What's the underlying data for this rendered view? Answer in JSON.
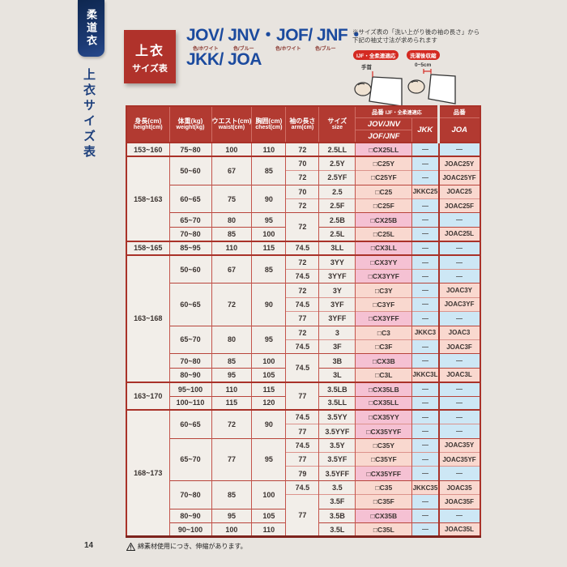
{
  "page": {
    "page_number": "14",
    "footer_note": "綿素材使用につき、伸縮があります。"
  },
  "sidebar": {
    "tab_label": "柔道衣",
    "section_label": "上衣サイズ表"
  },
  "header": {
    "badge_line1": "上衣",
    "badge_line2": "サイズ表",
    "title_line1": "JOV/ JNV・JOF/ JNF・",
    "title_line2": "JKK/ JOA",
    "color_labels": [
      "色/ホワイト",
      "色/ブルー",
      "色/ホワイト",
      "色/ブルー"
    ],
    "note_line1": "※サイズ表の「洗い上がり後の袖の長さ」から",
    "note_line2": "下記の袖丈寸法が求められます",
    "diagrams": {
      "left_badge": "IJF・全柔連適応",
      "left_label": "手首",
      "right_badge": "洗濯後収縮",
      "right_label": "0~5cm"
    }
  },
  "colors": {
    "accent_red": "#b23a31",
    "pink_cx": "#f5c1d3",
    "pink_val": "#f9d8cf",
    "blue_dash": "#cde7f5",
    "title_blue": "#1b4a9e",
    "navy": "#16305f"
  },
  "table": {
    "columns": [
      {
        "l1": "身長(cm)",
        "l2": "height(cm)"
      },
      {
        "l1": "体重(kg)",
        "l2": "weight(kg)"
      },
      {
        "l1": "ウエスト(cm)",
        "l2": "waist(cm)"
      },
      {
        "l1": "胸囲(cm)",
        "l2": "chest(cm)"
      },
      {
        "l1": "袖の長さ",
        "l2": "arm(cm)"
      },
      {
        "l1": "サイズ",
        "l2": "size"
      }
    ],
    "product_header": {
      "group1_main": "品番",
      "group1_sub": "IJF・全柔連適応",
      "group2": "品番",
      "sub1a": "JOV/JNV",
      "sub1b": "JOF/JNF",
      "jkk": "JKK",
      "joa": "JOA"
    },
    "rows": [
      {
        "g": "hg",
        "cells": [
          [
            "h",
            "153~160",
            1
          ],
          [
            "w",
            "75~80",
            1
          ],
          [
            "wa",
            "100",
            1
          ],
          [
            "ch",
            "110",
            1
          ],
          [
            "a",
            "72",
            1
          ],
          [
            "s",
            "2.5LL",
            1
          ],
          [
            "p",
            "□CX25LL",
            1,
            "cx"
          ],
          [
            "k",
            "—",
            1,
            "dash"
          ],
          [
            "j",
            "—",
            1,
            "dash"
          ]
        ]
      },
      {
        "g": "hg",
        "cells": [
          [
            "h",
            "158~163",
            6
          ],
          [
            "w",
            "50~60",
            2
          ],
          [
            "wa",
            "67",
            2
          ],
          [
            "ch",
            "85",
            2
          ],
          [
            "a",
            "70",
            1
          ],
          [
            "s",
            "2.5Y",
            1
          ],
          [
            "p",
            "□C25Y",
            1,
            "val"
          ],
          [
            "k",
            "—",
            1,
            "dash"
          ],
          [
            "j",
            "JOAC25Y",
            1,
            "val"
          ]
        ]
      },
      {
        "g": "",
        "cells": [
          [
            "a",
            "72",
            1
          ],
          [
            "s",
            "2.5YF",
            1
          ],
          [
            "p",
            "□C25YF",
            1,
            "val"
          ],
          [
            "k",
            "—",
            1,
            "dash"
          ],
          [
            "j",
            "JOAC25YF",
            1,
            "val"
          ]
        ]
      },
      {
        "g": "wg",
        "cells": [
          [
            "w",
            "60~65",
            2
          ],
          [
            "wa",
            "75",
            2
          ],
          [
            "ch",
            "90",
            2
          ],
          [
            "a",
            "70",
            1
          ],
          [
            "s",
            "2.5",
            1
          ],
          [
            "p",
            "□C25",
            1,
            "val"
          ],
          [
            "k",
            "JKKC25",
            1,
            "val"
          ],
          [
            "j",
            "JOAC25",
            1,
            "val"
          ]
        ]
      },
      {
        "g": "",
        "cells": [
          [
            "a",
            "72",
            1
          ],
          [
            "s",
            "2.5F",
            1
          ],
          [
            "p",
            "□C25F",
            1,
            "val"
          ],
          [
            "k",
            "—",
            1,
            "dash"
          ],
          [
            "j",
            "JOAC25F",
            1,
            "val"
          ]
        ]
      },
      {
        "g": "wg",
        "cells": [
          [
            "w",
            "65~70",
            1
          ],
          [
            "wa",
            "80",
            1
          ],
          [
            "ch",
            "95",
            1
          ],
          [
            "a",
            "72",
            2
          ],
          [
            "s",
            "2.5B",
            1
          ],
          [
            "p",
            "□CX25B",
            1,
            "cx"
          ],
          [
            "k",
            "—",
            1,
            "dash"
          ],
          [
            "j",
            "—",
            1,
            "dash"
          ]
        ]
      },
      {
        "g": "wg",
        "cells": [
          [
            "w",
            "70~80",
            1
          ],
          [
            "wa",
            "85",
            1
          ],
          [
            "ch",
            "100",
            1
          ],
          [
            "s",
            "2.5L",
            1
          ],
          [
            "p",
            "□C25L",
            1,
            "val"
          ],
          [
            "k",
            "—",
            1,
            "dash"
          ],
          [
            "j",
            "JOAC25L",
            1,
            "val"
          ]
        ]
      },
      {
        "g": "hg",
        "cells": [
          [
            "h",
            "158~165",
            1
          ],
          [
            "w",
            "85~95",
            1
          ],
          [
            "wa",
            "110",
            1
          ],
          [
            "ch",
            "115",
            1
          ],
          [
            "a",
            "74.5",
            1
          ],
          [
            "s",
            "3LL",
            1
          ],
          [
            "p",
            "□CX3LL",
            1,
            "cx"
          ],
          [
            "k",
            "—",
            1,
            "dash"
          ],
          [
            "j",
            "—",
            1,
            "dash"
          ]
        ]
      },
      {
        "g": "hg",
        "cells": [
          [
            "h",
            "163~168",
            9
          ],
          [
            "w",
            "50~60",
            2
          ],
          [
            "wa",
            "67",
            2
          ],
          [
            "ch",
            "85",
            2
          ],
          [
            "a",
            "72",
            1
          ],
          [
            "s",
            "3YY",
            1
          ],
          [
            "p",
            "□CX3YY",
            1,
            "cx"
          ],
          [
            "k",
            "—",
            1,
            "dash"
          ],
          [
            "j",
            "—",
            1,
            "dash"
          ]
        ]
      },
      {
        "g": "",
        "cells": [
          [
            "a",
            "74.5",
            1
          ],
          [
            "s",
            "3YYF",
            1
          ],
          [
            "p",
            "□CX3YYF",
            1,
            "cx"
          ],
          [
            "k",
            "—",
            1,
            "dash"
          ],
          [
            "j",
            "—",
            1,
            "dash"
          ]
        ]
      },
      {
        "g": "wg",
        "cells": [
          [
            "w",
            "60~65",
            3
          ],
          [
            "wa",
            "72",
            3
          ],
          [
            "ch",
            "90",
            3
          ],
          [
            "a",
            "72",
            1
          ],
          [
            "s",
            "3Y",
            1
          ],
          [
            "p",
            "□C3Y",
            1,
            "val"
          ],
          [
            "k",
            "—",
            1,
            "dash"
          ],
          [
            "j",
            "JOAC3Y",
            1,
            "val"
          ]
        ]
      },
      {
        "g": "",
        "cells": [
          [
            "a",
            "74.5",
            1
          ],
          [
            "s",
            "3YF",
            1
          ],
          [
            "p",
            "□C3YF",
            1,
            "val"
          ],
          [
            "k",
            "—",
            1,
            "dash"
          ],
          [
            "j",
            "JOAC3YF",
            1,
            "val"
          ]
        ]
      },
      {
        "g": "",
        "cells": [
          [
            "a",
            "77",
            1
          ],
          [
            "s",
            "3YFF",
            1
          ],
          [
            "p",
            "□CX3YFF",
            1,
            "cx"
          ],
          [
            "k",
            "—",
            1,
            "dash"
          ],
          [
            "j",
            "—",
            1,
            "dash"
          ]
        ]
      },
      {
        "g": "wg",
        "cells": [
          [
            "w",
            "65~70",
            2
          ],
          [
            "wa",
            "80",
            2
          ],
          [
            "ch",
            "95",
            2
          ],
          [
            "a",
            "72",
            1
          ],
          [
            "s",
            "3",
            1
          ],
          [
            "p",
            "□C3",
            1,
            "val"
          ],
          [
            "k",
            "JKKC3",
            1,
            "val"
          ],
          [
            "j",
            "JOAC3",
            1,
            "val"
          ]
        ]
      },
      {
        "g": "",
        "cells": [
          [
            "a",
            "74.5",
            1
          ],
          [
            "s",
            "3F",
            1
          ],
          [
            "p",
            "□C3F",
            1,
            "val"
          ],
          [
            "k",
            "—",
            1,
            "dash"
          ],
          [
            "j",
            "JOAC3F",
            1,
            "val"
          ]
        ]
      },
      {
        "g": "wg",
        "cells": [
          [
            "w",
            "70~80",
            1
          ],
          [
            "wa",
            "85",
            1
          ],
          [
            "ch",
            "100",
            1
          ],
          [
            "a",
            "74.5",
            2
          ],
          [
            "s",
            "3B",
            1
          ],
          [
            "p",
            "□CX3B",
            1,
            "cx"
          ],
          [
            "k",
            "—",
            1,
            "dash"
          ],
          [
            "j",
            "—",
            1,
            "dash"
          ]
        ]
      },
      {
        "g": "wg",
        "cells": [
          [
            "w",
            "80~90",
            1
          ],
          [
            "wa",
            "95",
            1
          ],
          [
            "ch",
            "105",
            1
          ],
          [
            "s",
            "3L",
            1
          ],
          [
            "p",
            "□C3L",
            1,
            "val"
          ],
          [
            "k",
            "JKKC3L",
            1,
            "val"
          ],
          [
            "j",
            "JOAC3L",
            1,
            "val"
          ]
        ]
      },
      {
        "g": "hg",
        "cells": [
          [
            "h",
            "163~170",
            2
          ],
          [
            "w",
            "95~100",
            1
          ],
          [
            "wa",
            "110",
            1
          ],
          [
            "ch",
            "115",
            1
          ],
          [
            "a",
            "77",
            2
          ],
          [
            "s",
            "3.5LB",
            1
          ],
          [
            "p",
            "□CX35LB",
            1,
            "cx"
          ],
          [
            "k",
            "—",
            1,
            "dash"
          ],
          [
            "j",
            "—",
            1,
            "dash"
          ]
        ]
      },
      {
        "g": "wg",
        "cells": [
          [
            "w",
            "100~110",
            1
          ],
          [
            "wa",
            "115",
            1
          ],
          [
            "ch",
            "120",
            1
          ],
          [
            "s",
            "3.5LL",
            1
          ],
          [
            "p",
            "□CX35LL",
            1,
            "cx"
          ],
          [
            "k",
            "—",
            1,
            "dash"
          ],
          [
            "j",
            "—",
            1,
            "dash"
          ]
        ]
      },
      {
        "g": "hg",
        "cells": [
          [
            "h",
            "168~173",
            9
          ],
          [
            "w",
            "60~65",
            2
          ],
          [
            "wa",
            "72",
            2
          ],
          [
            "ch",
            "90",
            2
          ],
          [
            "a",
            "74.5",
            1
          ],
          [
            "s",
            "3.5YY",
            1
          ],
          [
            "p",
            "□CX35YY",
            1,
            "cx"
          ],
          [
            "k",
            "—",
            1,
            "dash"
          ],
          [
            "j",
            "—",
            1,
            "dash"
          ]
        ]
      },
      {
        "g": "",
        "cells": [
          [
            "a",
            "77",
            1
          ],
          [
            "s",
            "3.5YYF",
            1
          ],
          [
            "p",
            "□CX35YYF",
            1,
            "cx"
          ],
          [
            "k",
            "—",
            1,
            "dash"
          ],
          [
            "j",
            "—",
            1,
            "dash"
          ]
        ]
      },
      {
        "g": "wg",
        "cells": [
          [
            "w",
            "65~70",
            3
          ],
          [
            "wa",
            "77",
            3
          ],
          [
            "ch",
            "95",
            3
          ],
          [
            "a",
            "74.5",
            1
          ],
          [
            "s",
            "3.5Y",
            1
          ],
          [
            "p",
            "□C35Y",
            1,
            "val"
          ],
          [
            "k",
            "—",
            1,
            "dash"
          ],
          [
            "j",
            "JOAC35Y",
            1,
            "val"
          ]
        ]
      },
      {
        "g": "",
        "cells": [
          [
            "a",
            "77",
            1
          ],
          [
            "s",
            "3.5YF",
            1
          ],
          [
            "p",
            "□C35YF",
            1,
            "val"
          ],
          [
            "k",
            "—",
            1,
            "dash"
          ],
          [
            "j",
            "JOAC35YF",
            1,
            "val"
          ]
        ]
      },
      {
        "g": "",
        "cells": [
          [
            "a",
            "79",
            1
          ],
          [
            "s",
            "3.5YFF",
            1
          ],
          [
            "p",
            "□CX35YFF",
            1,
            "cx"
          ],
          [
            "k",
            "—",
            1,
            "dash"
          ],
          [
            "j",
            "—",
            1,
            "dash"
          ]
        ]
      },
      {
        "g": "wg",
        "cells": [
          [
            "w",
            "70~80",
            2
          ],
          [
            "wa",
            "85",
            2
          ],
          [
            "ch",
            "100",
            2
          ],
          [
            "a",
            "74.5",
            1
          ],
          [
            "s",
            "3.5",
            1
          ],
          [
            "p",
            "□C35",
            1,
            "val"
          ],
          [
            "k",
            "JKKC35",
            1,
            "val"
          ],
          [
            "j",
            "JOAC35",
            1,
            "val"
          ]
        ]
      },
      {
        "g": "",
        "cells": [
          [
            "a",
            "77",
            3
          ],
          [
            "s",
            "3.5F",
            1
          ],
          [
            "p",
            "□C35F",
            1,
            "val"
          ],
          [
            "k",
            "—",
            1,
            "dash"
          ],
          [
            "j",
            "JOAC35F",
            1,
            "val"
          ]
        ]
      },
      {
        "g": "wg",
        "cells": [
          [
            "w",
            "80~90",
            1
          ],
          [
            "wa",
            "95",
            1
          ],
          [
            "ch",
            "105",
            1
          ],
          [
            "s",
            "3.5B",
            1
          ],
          [
            "p",
            "□CX35B",
            1,
            "cx"
          ],
          [
            "k",
            "—",
            1,
            "dash"
          ],
          [
            "j",
            "—",
            1,
            "dash"
          ]
        ]
      },
      {
        "g": "wg",
        "cells": [
          [
            "w",
            "90~100",
            1
          ],
          [
            "wa",
            "100",
            1
          ],
          [
            "ch",
            "110",
            1
          ],
          [
            "s",
            "3.5L",
            1
          ],
          [
            "p",
            "□C35L",
            1,
            "val"
          ],
          [
            "k",
            "—",
            1,
            "dash"
          ],
          [
            "j",
            "JOAC35L",
            1,
            "val"
          ]
        ]
      }
    ]
  }
}
